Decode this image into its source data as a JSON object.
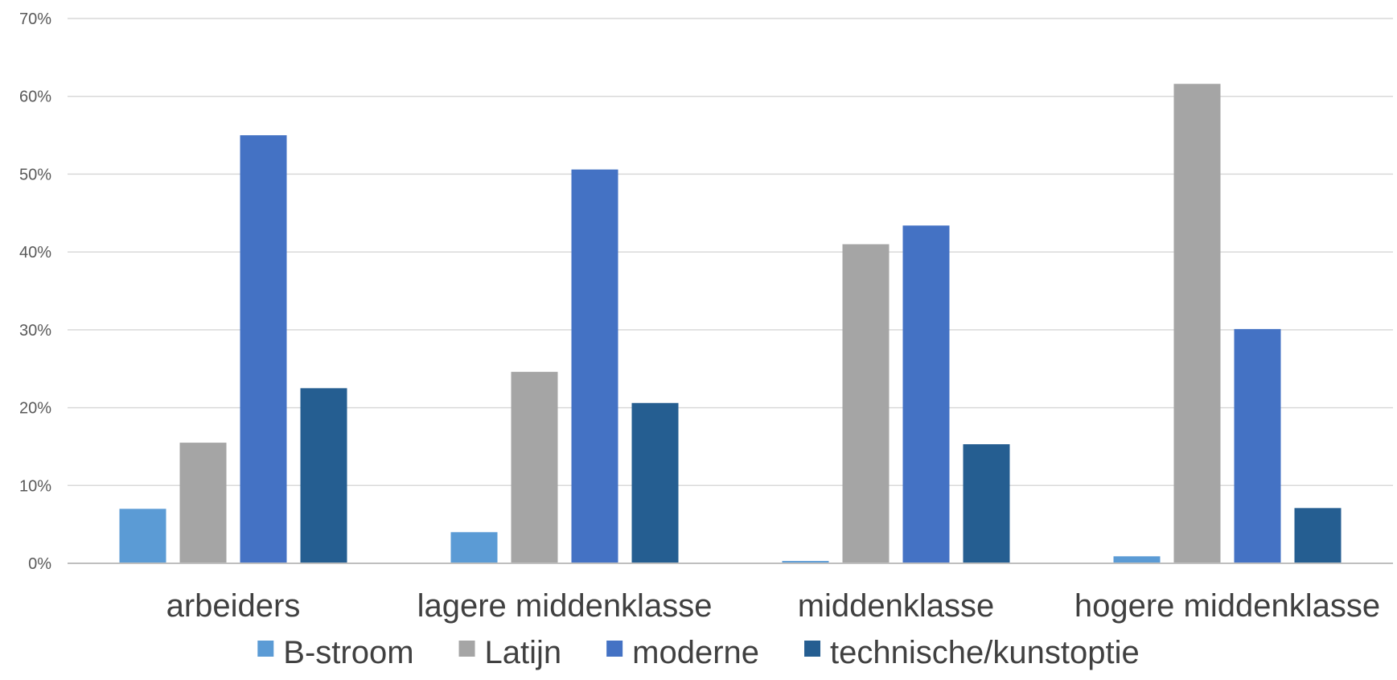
{
  "chart_data": {
    "type": "bar",
    "title": "",
    "xlabel": "",
    "ylabel": "",
    "categories": [
      "arbeiders",
      "lagere middenklasse",
      "middenklasse",
      "hogere middenklasse"
    ],
    "series": [
      {
        "name": "B-stroom",
        "color": "#5b9bd5",
        "values": [
          7.0,
          4.0,
          0.3,
          0.9
        ]
      },
      {
        "name": "Latijn",
        "color": "#a5a5a5",
        "values": [
          15.5,
          24.6,
          41.0,
          61.6
        ]
      },
      {
        "name": "moderne",
        "color": "#4472c4",
        "values": [
          55.0,
          50.6,
          43.4,
          30.1
        ]
      },
      {
        "name": "technische/kunstoptie",
        "color": "#255e91",
        "values": [
          22.5,
          20.6,
          15.3,
          7.1
        ]
      }
    ],
    "ylim": [
      0,
      70
    ],
    "yticks": [
      0,
      10,
      20,
      30,
      40,
      50,
      60,
      70
    ],
    "ytick_labels": [
      "0%",
      "10%",
      "20%",
      "30%",
      "40%",
      "50%",
      "60%",
      "70%"
    ],
    "grid": true,
    "legend_position": "bottom"
  }
}
